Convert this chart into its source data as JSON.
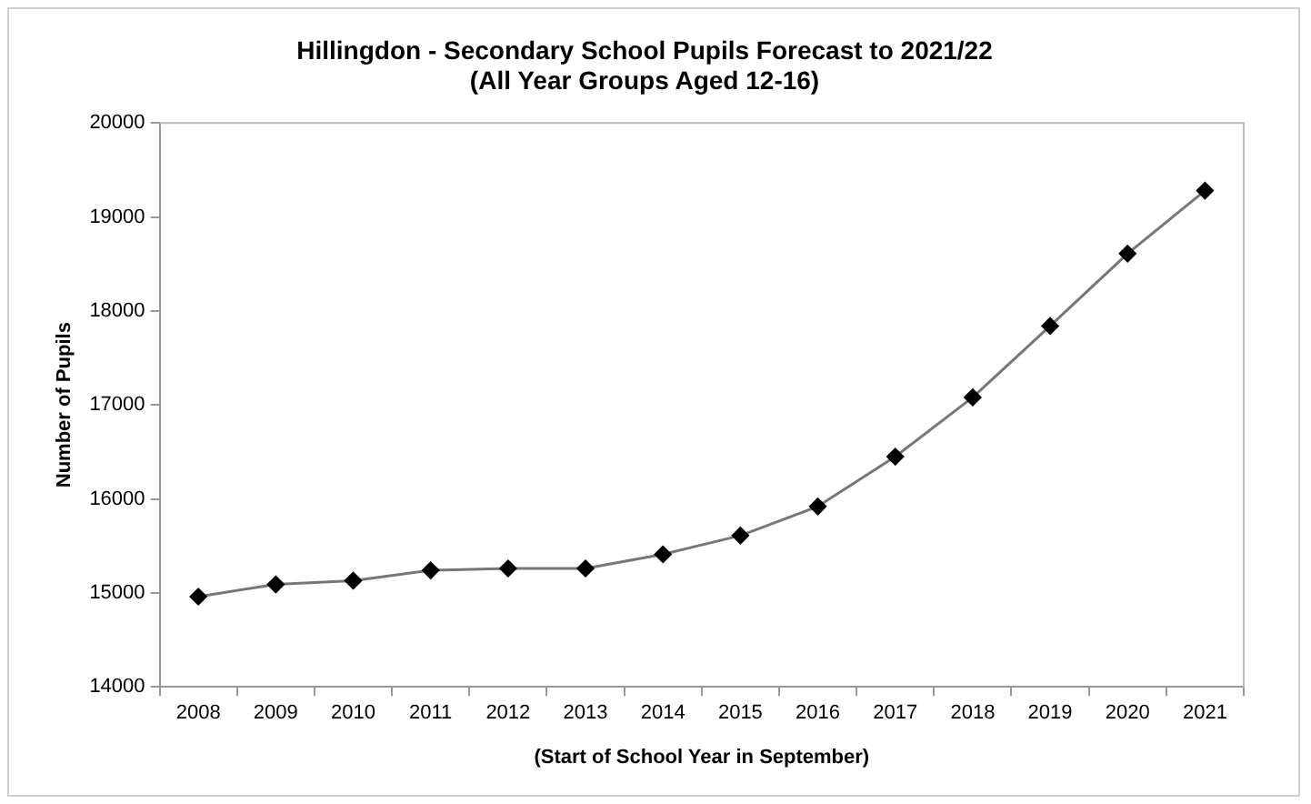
{
  "chart_data": {
    "type": "line",
    "title": [
      "Hillingdon - Secondary School Pupils Forecast to 2021/22",
      "(All Year Groups Aged 12-16)"
    ],
    "xlabel": "(Start of School Year in September)",
    "ylabel": "Number of Pupils",
    "categories": [
      "2008",
      "2009",
      "2010",
      "2011",
      "2012",
      "2013",
      "2014",
      "2015",
      "2016",
      "2017",
      "2018",
      "2019",
      "2020",
      "2021"
    ],
    "series": [
      {
        "color": "#000000",
        "values": [
          14960,
          15090,
          15130,
          15240,
          15260,
          15260,
          15410,
          15610,
          15920,
          16450,
          17080,
          17840,
          18610,
          19280
        ]
      }
    ],
    "ylim": [
      14000,
      20000
    ],
    "yticks": [
      14000,
      15000,
      16000,
      17000,
      18000,
      19000,
      20000
    ],
    "grid": false,
    "legend": false,
    "marker": "diamond",
    "line_style": "solid"
  }
}
